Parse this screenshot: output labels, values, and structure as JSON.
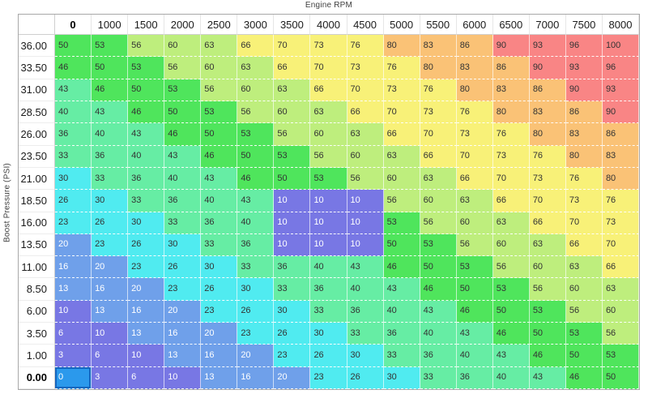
{
  "axes": {
    "x_title": "Engine RPM",
    "y_title": "Boost Pressure (PSI)"
  },
  "table": {
    "column_headers": [
      "0",
      "1000",
      "1500",
      "2000",
      "2500",
      "3000",
      "3500",
      "4000",
      "4500",
      "5000",
      "5500",
      "6000",
      "6500",
      "7000",
      "7500",
      "8000"
    ],
    "row_headers": [
      "36.00",
      "33.50",
      "31.00",
      "28.50",
      "26.00",
      "23.50",
      "21.00",
      "18.50",
      "16.00",
      "13.50",
      "11.00",
      "8.50",
      "6.00",
      "3.50",
      "1.00",
      "0.00"
    ],
    "values": [
      [
        50,
        53,
        56,
        60,
        63,
        66,
        70,
        73,
        76,
        80,
        83,
        86,
        90,
        93,
        96,
        100
      ],
      [
        46,
        50,
        53,
        56,
        60,
        63,
        66,
        70,
        73,
        76,
        80,
        83,
        86,
        90,
        93,
        96
      ],
      [
        43,
        46,
        50,
        53,
        56,
        60,
        63,
        66,
        70,
        73,
        76,
        80,
        83,
        86,
        90,
        93
      ],
      [
        40,
        43,
        46,
        50,
        53,
        56,
        60,
        63,
        66,
        70,
        73,
        76,
        80,
        83,
        86,
        90
      ],
      [
        36,
        40,
        43,
        46,
        50,
        53,
        56,
        60,
        63,
        66,
        70,
        73,
        76,
        80,
        83,
        86
      ],
      [
        33,
        36,
        40,
        43,
        46,
        50,
        53,
        56,
        60,
        63,
        66,
        70,
        73,
        76,
        80,
        83
      ],
      [
        30,
        33,
        36,
        40,
        43,
        46,
        50,
        53,
        56,
        60,
        63,
        66,
        70,
        73,
        76,
        80
      ],
      [
        26,
        30,
        33,
        36,
        40,
        43,
        10,
        10,
        10,
        56,
        60,
        63,
        66,
        70,
        73,
        76
      ],
      [
        23,
        26,
        30,
        33,
        36,
        40,
        10,
        10,
        10,
        53,
        56,
        60,
        63,
        66,
        70,
        73
      ],
      [
        20,
        23,
        26,
        30,
        33,
        36,
        10,
        10,
        10,
        50,
        53,
        56,
        60,
        63,
        66,
        70
      ],
      [
        16,
        20,
        23,
        26,
        30,
        33,
        36,
        40,
        43,
        46,
        50,
        53,
        56,
        60,
        63,
        66
      ],
      [
        13,
        16,
        20,
        23,
        26,
        30,
        33,
        36,
        40,
        43,
        46,
        50,
        53,
        56,
        60,
        63
      ],
      [
        10,
        13,
        16,
        20,
        23,
        26,
        30,
        33,
        36,
        40,
        43,
        46,
        50,
        53,
        56,
        60
      ],
      [
        6,
        10,
        13,
        16,
        20,
        23,
        26,
        30,
        33,
        36,
        40,
        43,
        46,
        50,
        53,
        56
      ],
      [
        3,
        6,
        10,
        13,
        16,
        20,
        23,
        26,
        30,
        33,
        36,
        40,
        43,
        46,
        50,
        53
      ],
      [
        0,
        3,
        6,
        10,
        13,
        16,
        20,
        23,
        26,
        30,
        33,
        36,
        40,
        43,
        46,
        50
      ]
    ],
    "selected": {
      "row_index": 15,
      "col_index": 0,
      "value": 0
    },
    "selected_style": {
      "bg": "#2B99EC",
      "border": "#1566BE",
      "fg": "#FFFFFF"
    },
    "color_scale": [
      {
        "max": 10,
        "bg": "#7877E4",
        "fg": "#FFFFFF"
      },
      {
        "max": 20,
        "bg": "#6FA0EA",
        "fg": "#FFFFFF"
      },
      {
        "max": 30,
        "bg": "#50EBF0",
        "fg": "#333333"
      },
      {
        "max": 43,
        "bg": "#66EDA4",
        "fg": "#333333"
      },
      {
        "max": 53,
        "bg": "#4FE55C",
        "fg": "#333333"
      },
      {
        "max": 63,
        "bg": "#BEEE7D",
        "fg": "#333333"
      },
      {
        "max": 76,
        "bg": "#F8F178",
        "fg": "#333333"
      },
      {
        "max": 86,
        "bg": "#FAC276",
        "fg": "#333333"
      },
      {
        "max": 100,
        "bg": "#F98585",
        "fg": "#333333"
      }
    ]
  }
}
